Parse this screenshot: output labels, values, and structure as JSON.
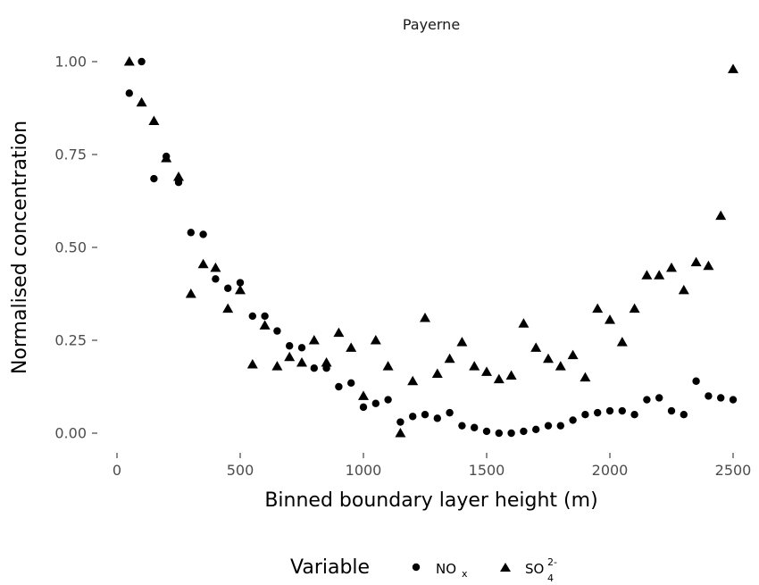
{
  "chart_data": {
    "type": "scatter",
    "title": "Payerne",
    "xlabel": "Binned boundary layer height (m)",
    "ylabel": "Normalised concentration",
    "xlim": [
      0,
      2550
    ],
    "ylim": [
      -0.04,
      1.04
    ],
    "xticks": [
      "0",
      "500",
      "1000",
      "1500",
      "2000",
      "2500"
    ],
    "yticks": [
      "0.00",
      "0.25",
      "0.50",
      "0.75",
      "1.00"
    ],
    "grid": false,
    "legend": {
      "title": "Variable",
      "position": "bottom",
      "entries": [
        {
          "marker": "circle",
          "text": "NO",
          "sub": "x",
          "sup": ""
        },
        {
          "marker": "triangle",
          "text": "SO",
          "sub": "4",
          "sup": "2-"
        }
      ]
    },
    "series": [
      {
        "marker": "circle",
        "x": [
          50,
          100,
          150,
          200,
          250,
          300,
          350,
          400,
          450,
          500,
          550,
          600,
          650,
          700,
          750,
          800,
          850,
          900,
          950,
          1000,
          1050,
          1100,
          1150,
          1200,
          1250,
          1300,
          1350,
          1400,
          1450,
          1500,
          1550,
          1600,
          1650,
          1700,
          1750,
          1800,
          1850,
          1900,
          1950,
          2000,
          2050,
          2100,
          2150,
          2200,
          2250,
          2300,
          2350,
          2400,
          2450,
          2500
        ],
        "y": [
          0.915,
          1.0,
          0.685,
          0.745,
          0.675,
          0.54,
          0.535,
          0.415,
          0.39,
          0.405,
          0.315,
          0.315,
          0.275,
          0.235,
          0.23,
          0.175,
          0.175,
          0.125,
          0.135,
          0.07,
          0.08,
          0.09,
          0.03,
          0.045,
          0.05,
          0.04,
          0.055,
          0.02,
          0.015,
          0.005,
          0.0,
          0.0,
          0.005,
          0.01,
          0.02,
          0.02,
          0.035,
          0.05,
          0.055,
          0.06,
          0.06,
          0.05,
          0.09,
          0.095,
          0.06,
          0.05,
          0.14,
          0.1,
          0.095,
          0.09
        ]
      },
      {
        "marker": "triangle",
        "x": [
          50,
          100,
          150,
          200,
          250,
          300,
          350,
          400,
          450,
          500,
          550,
          600,
          650,
          700,
          750,
          800,
          850,
          900,
          950,
          1000,
          1050,
          1100,
          1150,
          1200,
          1250,
          1300,
          1350,
          1400,
          1450,
          1500,
          1550,
          1600,
          1650,
          1700,
          1750,
          1800,
          1850,
          1900,
          1950,
          2000,
          2050,
          2100,
          2150,
          2200,
          2250,
          2300,
          2350,
          2400,
          2450,
          2500
        ],
        "y": [
          1.0,
          0.89,
          0.84,
          0.74,
          0.69,
          0.375,
          0.455,
          0.445,
          0.335,
          0.385,
          0.185,
          0.29,
          0.18,
          0.205,
          0.19,
          0.25,
          0.19,
          0.27,
          0.23,
          0.1,
          0.25,
          0.18,
          0.0,
          0.14,
          0.31,
          0.16,
          0.2,
          0.245,
          0.18,
          0.165,
          0.145,
          0.155,
          0.295,
          0.23,
          0.2,
          0.18,
          0.21,
          0.15,
          0.335,
          0.305,
          0.245,
          0.335,
          0.425,
          0.425,
          0.445,
          0.385,
          0.46,
          0.45,
          0.585,
          0.98
        ]
      }
    ]
  }
}
